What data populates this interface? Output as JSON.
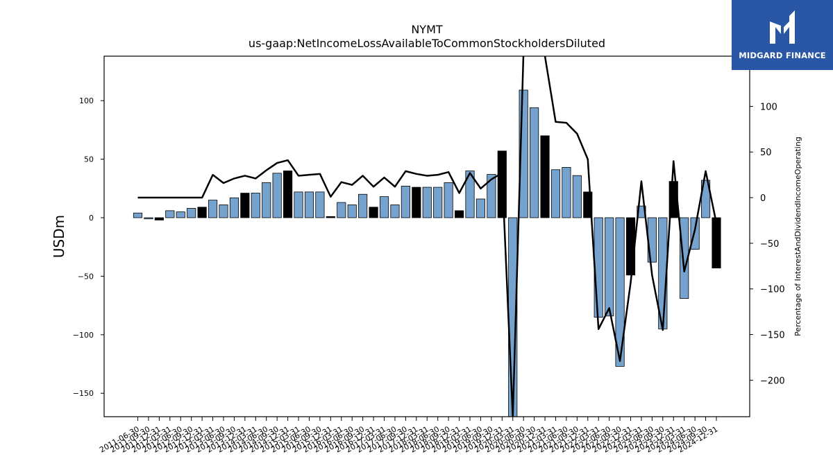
{
  "logo": {
    "brand": "MIDGARD FINANCE",
    "icon": "midgard-logo-icon"
  },
  "chart_data": {
    "type": "bar",
    "title": "NYMT",
    "subtitle": "us-gaap:NetIncomeLossAvailableToCommonStockholdersDiluted",
    "ylabel": "USDm",
    "y2label": "Percentage of InterestAndDividendIncomeOperating",
    "ylim": [
      -170,
      138
    ],
    "y2lim": [
      -240,
      155
    ],
    "yticks": [
      -150,
      -100,
      -50,
      0,
      50,
      100
    ],
    "y2ticks": [
      -200,
      -150,
      -100,
      -50,
      0,
      50,
      100
    ],
    "grid": false,
    "colors": {
      "bar": "#75a3cd",
      "bar_q4": "#000000",
      "line": "#000000"
    },
    "categories": [
      "2011-06-30",
      "2011-09-30",
      "2011-12-31",
      "2012-03-31",
      "2012-06-30",
      "2012-09-30",
      "2012-12-31",
      "2013-03-31",
      "2013-06-30",
      "2013-09-30",
      "2013-12-31",
      "2014-03-31",
      "2014-06-30",
      "2014-09-30",
      "2014-12-31",
      "2015-03-31",
      "2015-06-30",
      "2015-09-30",
      "2015-12-31",
      "2016-03-31",
      "2016-06-30",
      "2016-09-30",
      "2016-12-31",
      "2017-03-31",
      "2017-06-30",
      "2017-09-30",
      "2017-12-31",
      "2018-03-31",
      "2018-06-30",
      "2018-09-30",
      "2018-12-31",
      "2019-03-31",
      "2019-06-30",
      "2019-09-30",
      "2019-12-31",
      "2020-03-31",
      "2020-06-30",
      "2020-09-30",
      "2020-12-31",
      "2021-03-31",
      "2021-06-30",
      "2021-09-30",
      "2021-12-31",
      "2022-03-31",
      "2022-06-30",
      "2022-09-30",
      "2022-12-31",
      "2023-03-31",
      "2023-06-30",
      "2023-09-30",
      "2023-12-31",
      "2024-03-31",
      "2024-06-30",
      "2024-09-30",
      "2024-12-31"
    ],
    "series": [
      {
        "type": "bar",
        "values": [
          4,
          -1,
          -2,
          6,
          5,
          8,
          9,
          15,
          11,
          17,
          21,
          21,
          30,
          38,
          40,
          22,
          22,
          22,
          1,
          13,
          11,
          20,
          9,
          18,
          11,
          27,
          26,
          26,
          26,
          30,
          6,
          40,
          16,
          37,
          57,
          -170,
          109,
          94,
          70,
          41,
          43,
          36,
          22,
          -85,
          -84,
          -127,
          -49,
          10,
          -38,
          -95,
          31,
          -69,
          -27,
          32,
          -43
        ]
      },
      {
        "type": "line",
        "values": [
          0,
          0,
          0,
          0,
          0,
          0,
          0,
          25,
          16,
          21,
          24,
          21,
          30,
          38,
          41,
          24,
          25,
          26,
          1,
          17,
          14,
          24,
          12,
          22,
          12,
          29,
          26,
          24,
          25,
          28,
          5,
          27,
          10,
          20,
          27,
          -240,
          160,
          175,
          155,
          83,
          82,
          70,
          42,
          -144,
          -121,
          -179,
          -93,
          18,
          -85,
          -145,
          40,
          -81,
          -35,
          29,
          -28
        ]
      }
    ]
  }
}
